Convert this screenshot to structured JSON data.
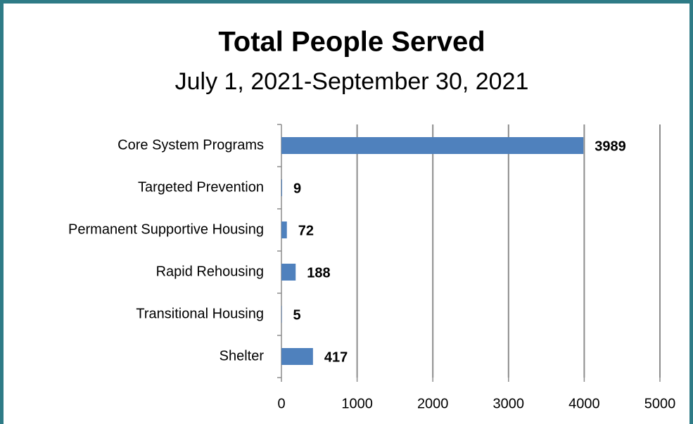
{
  "chart_data": {
    "type": "bar",
    "orientation": "horizontal",
    "title": "Total People Served",
    "subtitle": "July 1, 2021-September 30, 2021",
    "categories": [
      "Core System Programs",
      "Targeted Prevention",
      "Permanent Supportive Housing",
      "Rapid Rehousing",
      "Transitional Housing",
      "Shelter"
    ],
    "values": [
      3989,
      9,
      72,
      188,
      5,
      417
    ],
    "color": "#4f81bd",
    "xlim": [
      0,
      5000
    ],
    "xticks": [
      0,
      1000,
      2000,
      3000,
      4000,
      5000
    ],
    "grid": true
  }
}
